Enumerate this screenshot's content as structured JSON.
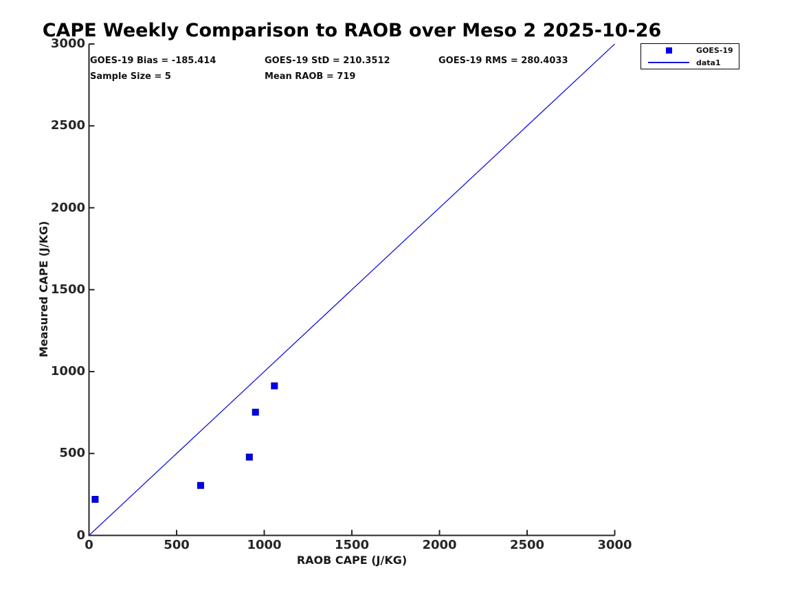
{
  "title": "CAPE Weekly Comparison to RAOB over Meso 2 2025-10-26",
  "stats": {
    "bias": "GOES-19 Bias = -185.414",
    "std": "GOES-19 StD = 210.3512",
    "rms": "GOES-19 RMS = 280.4033",
    "sample_size": "Sample Size = 5",
    "mean_raob": "Mean RAOB = 719"
  },
  "legend": {
    "entries": [
      {
        "label": "GOES-19",
        "marker": "square",
        "color": "#0000f0"
      },
      {
        "label": "data1",
        "marker": "line",
        "color": "#1212dd"
      }
    ]
  },
  "colors": {
    "marker_blue": "#0000f0",
    "marker_edge": "#0000a8",
    "line_blue": "#1212dd",
    "axis": "#262626",
    "tick_text": "#262626",
    "text": "#111111",
    "background": "#ffffff"
  },
  "chart_data": {
    "type": "scatter",
    "title": "CAPE Weekly Comparison to RAOB over Meso 2 2025-10-26",
    "xlabel": "RAOB CAPE (J/KG)",
    "ylabel": "Measured CAPE (J/KG)",
    "xlim": [
      0,
      3000
    ],
    "ylim": [
      0,
      3000
    ],
    "x_ticks": [
      0,
      500,
      1000,
      1500,
      2000,
      2500,
      3000
    ],
    "y_ticks": [
      0,
      500,
      1000,
      1500,
      2000,
      2500,
      3000
    ],
    "grid": false,
    "box": false,
    "legend_position": "outside-top-right",
    "annotations": [
      "GOES-19 Bias = -185.414",
      "GOES-19 StD = 210.3512",
      "GOES-19 RMS = 280.4033",
      "Sample Size = 5",
      "Mean RAOB = 719"
    ],
    "series": [
      {
        "name": "GOES-19",
        "kind": "scatter",
        "marker": "square",
        "marker_size": 9,
        "points": [
          {
            "x": 35,
            "y": 220
          },
          {
            "x": 637,
            "y": 305
          },
          {
            "x": 915,
            "y": 478
          },
          {
            "x": 950,
            "y": 752
          },
          {
            "x": 1058,
            "y": 913
          }
        ]
      },
      {
        "name": "data1",
        "kind": "line",
        "description": "identity line y = x",
        "points": [
          {
            "x": 0,
            "y": 0
          },
          {
            "x": 3000,
            "y": 3000
          }
        ]
      }
    ]
  }
}
